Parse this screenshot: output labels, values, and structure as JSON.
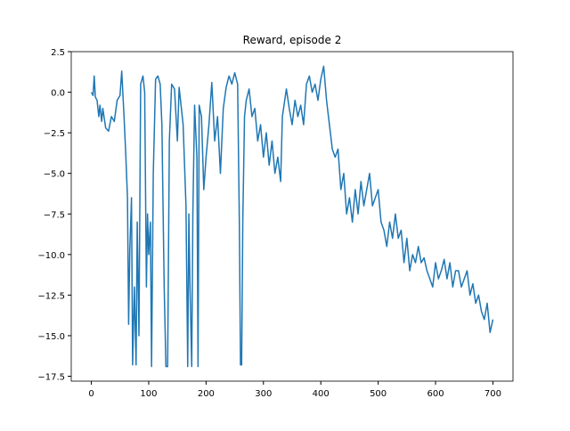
{
  "chart_data": {
    "type": "line",
    "title": "Reward, episode 2",
    "x": [
      0,
      3,
      5,
      7,
      10,
      13,
      15,
      18,
      20,
      25,
      30,
      35,
      40,
      45,
      50,
      53,
      57,
      60,
      63,
      65,
      67,
      70,
      72,
      75,
      78,
      80,
      83,
      86,
      90,
      93,
      96,
      98,
      100,
      103,
      105,
      108,
      112,
      116,
      120,
      123,
      127,
      130,
      133,
      136,
      140,
      145,
      150,
      153,
      157,
      160,
      165,
      168,
      170,
      172,
      175,
      177,
      180,
      184,
      186,
      188,
      192,
      196,
      200,
      205,
      210,
      215,
      220,
      225,
      230,
      235,
      240,
      245,
      250,
      255,
      258,
      260,
      262,
      264,
      267,
      270,
      275,
      280,
      285,
      290,
      295,
      300,
      305,
      310,
      315,
      320,
      325,
      330,
      333,
      340,
      345,
      350,
      355,
      360,
      365,
      370,
      375,
      380,
      385,
      390,
      395,
      400,
      405,
      410,
      415,
      420,
      425,
      430,
      435,
      440,
      445,
      450,
      455,
      460,
      465,
      470,
      475,
      480,
      485,
      490,
      495,
      500,
      505,
      510,
      515,
      520,
      525,
      530,
      535,
      540,
      545,
      550,
      555,
      560,
      565,
      570,
      575,
      580,
      585,
      590,
      595,
      600,
      605,
      610,
      615,
      620,
      625,
      630,
      635,
      640,
      645,
      650,
      655,
      660,
      665,
      670,
      675,
      680,
      685,
      690,
      695,
      700
    ],
    "series": [
      {
        "name": "Reward",
        "color": "#1f77b4",
        "values": [
          0,
          -0.2,
          1.0,
          -0.3,
          -0.5,
          -1.5,
          -0.8,
          -1.8,
          -1.0,
          -2.2,
          -2.4,
          -1.5,
          -1.8,
          -0.5,
          -0.2,
          1.3,
          -1.5,
          -3.8,
          -6.5,
          -14.3,
          -9.8,
          -6.5,
          -16.8,
          -12,
          -16.8,
          -8,
          -15,
          0.5,
          1,
          0,
          -12,
          -7.5,
          -10,
          -8,
          -16.9,
          -5,
          0.8,
          1.0,
          0.5,
          -2,
          -12,
          -16.9,
          -16.9,
          -3,
          0.5,
          0.2,
          -3,
          0.3,
          -1,
          -2,
          -7,
          -16.9,
          -7.5,
          -12,
          -16.9,
          -7.5,
          -0.8,
          -4,
          -16.9,
          -0.8,
          -1.5,
          -6,
          -4,
          -2,
          0.6,
          -3,
          -1.5,
          -5,
          -1,
          0.3,
          1,
          0.5,
          1.2,
          0.5,
          -8,
          -16.8,
          -16.8,
          -8,
          -1.5,
          -0.5,
          0.2,
          -1.5,
          -1.0,
          -3,
          -2,
          -4,
          -2.5,
          -4.5,
          -3,
          -5,
          -4,
          -5.5,
          -1.5,
          0.2,
          -1,
          -2,
          -0.5,
          -1.5,
          -0.8,
          -2,
          0.5,
          1,
          0,
          0.5,
          -0.5,
          0.8,
          1.6,
          -0.5,
          -2,
          -3.5,
          -4,
          -3.5,
          -6,
          -5,
          -7.5,
          -6.5,
          -8,
          -6,
          -7.5,
          -5.5,
          -7,
          -6,
          -5,
          -7,
          -6.5,
          -6,
          -8,
          -8.5,
          -9.5,
          -8,
          -9,
          -7.5,
          -9,
          -8.5,
          -10.5,
          -9,
          -11,
          -10,
          -10.5,
          -9.5,
          -10.5,
          -10.2,
          -11,
          -11.5,
          -12,
          -10.5,
          -11.5,
          -11,
          -10.3,
          -11.5,
          -10.5,
          -12,
          -11,
          -11,
          -12,
          -11.5,
          -11,
          -12.5,
          -11.8,
          -13,
          -12.5,
          -13.5,
          -14,
          -13,
          -14.8,
          -14
        ]
      }
    ],
    "xlim": [
      -35,
      735
    ],
    "ylim": [
      -17.8,
      2.5
    ],
    "xticks": [
      0,
      100,
      200,
      300,
      400,
      500,
      600,
      700
    ],
    "yticks": [
      2.5,
      {
        "value": 0,
        "label": "0.0"
      },
      {
        "value": -2.5,
        "label": "−2.5"
      },
      {
        "value": -5,
        "label": "−5.0"
      },
      {
        "value": -7.5,
        "label": "−7.5"
      },
      {
        "value": -10,
        "label": "−10.0"
      },
      {
        "value": -12.5,
        "label": "−12.5"
      },
      {
        "value": -15,
        "label": "−15.0"
      },
      {
        "value": -17.5,
        "label": "−17.5"
      }
    ]
  }
}
